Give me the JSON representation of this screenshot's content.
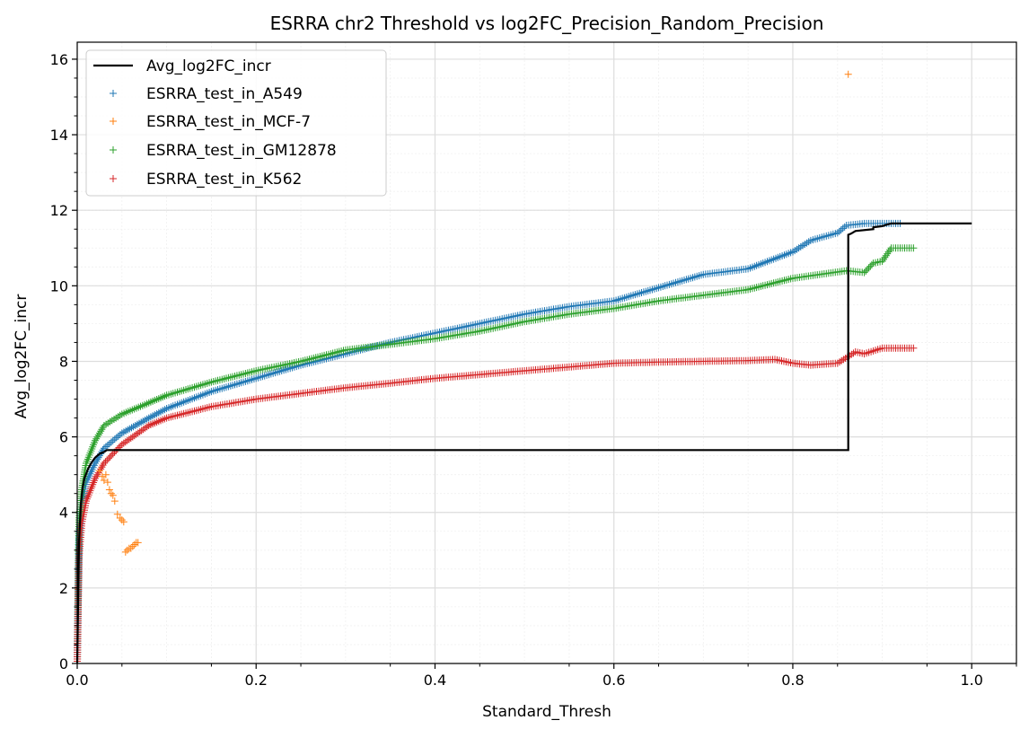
{
  "chart_data": {
    "type": "scatter",
    "title": "ESRRA chr2 Threshold vs log2FC_Precision_Random_Precision",
    "xlabel": "Standard_Thresh",
    "ylabel": "Avg_log2FC_incr",
    "xlim": [
      0,
      1.05
    ],
    "ylim": [
      0,
      16.45
    ],
    "xticks": [
      0.0,
      0.2,
      0.4,
      0.6,
      0.8,
      1.0
    ],
    "xtick_labels": [
      "0.0",
      "0.2",
      "0.4",
      "0.6",
      "0.8",
      "1.0"
    ],
    "yticks": [
      0,
      2,
      4,
      6,
      8,
      10,
      12,
      14,
      16
    ],
    "ytick_labels": [
      "0",
      "2",
      "4",
      "6",
      "8",
      "10",
      "12",
      "14",
      "16"
    ],
    "grid": true,
    "minor_grid": true,
    "legend_position": "top-left",
    "line_series": {
      "name": "Avg_log2FC_incr",
      "color": "#000000",
      "x": [
        0.0,
        0.002,
        0.004,
        0.006,
        0.008,
        0.012,
        0.016,
        0.02,
        0.025,
        0.03,
        0.033,
        0.862,
        0.862,
        0.865,
        0.87,
        0.89,
        0.89,
        0.9,
        0.905,
        0.91,
        1.0
      ],
      "y": [
        0.0,
        3.2,
        4.2,
        4.65,
        4.9,
        5.15,
        5.32,
        5.45,
        5.55,
        5.6,
        5.65,
        5.65,
        11.35,
        11.38,
        11.45,
        11.5,
        11.55,
        11.58,
        11.62,
        11.65,
        11.65
      ]
    },
    "series": [
      {
        "name": "ESRRA_test_in_A549",
        "color": "#1f77b4",
        "x": [
          0.0,
          0.002,
          0.005,
          0.01,
          0.02,
          0.03,
          0.05,
          0.08,
          0.1,
          0.15,
          0.2,
          0.25,
          0.3,
          0.35,
          0.4,
          0.45,
          0.5,
          0.55,
          0.6,
          0.65,
          0.7,
          0.75,
          0.8,
          0.82,
          0.85,
          0.86,
          0.88,
          0.9,
          0.91,
          0.92
        ],
        "y": [
          0.0,
          3.3,
          4.2,
          4.8,
          5.3,
          5.7,
          6.1,
          6.5,
          6.75,
          7.2,
          7.55,
          7.9,
          8.2,
          8.5,
          8.75,
          9.0,
          9.25,
          9.45,
          9.6,
          9.95,
          10.3,
          10.45,
          10.9,
          11.2,
          11.4,
          11.6,
          11.65,
          11.65,
          11.65,
          11.65
        ]
      },
      {
        "name": "ESRRA_test_in_MCF-7",
        "color": "#ff7f0e",
        "x": [
          0.025,
          0.028,
          0.03,
          0.032,
          0.034,
          0.036,
          0.038,
          0.04,
          0.042,
          0.045,
          0.048,
          0.05,
          0.052,
          0.054,
          0.056,
          0.058,
          0.06,
          0.062,
          0.064,
          0.066,
          0.068,
          0.862
        ],
        "y": [
          5.1,
          4.95,
          4.85,
          5.0,
          4.8,
          4.6,
          4.5,
          4.45,
          4.3,
          3.95,
          3.85,
          3.8,
          3.75,
          2.95,
          3.0,
          3.05,
          3.05,
          3.1,
          3.15,
          3.2,
          3.2,
          15.6
        ]
      },
      {
        "name": "ESRRA_test_in_GM12878",
        "color": "#2ca02c",
        "x": [
          0.0,
          0.002,
          0.005,
          0.01,
          0.02,
          0.03,
          0.05,
          0.08,
          0.1,
          0.15,
          0.2,
          0.25,
          0.3,
          0.35,
          0.4,
          0.45,
          0.5,
          0.55,
          0.6,
          0.65,
          0.7,
          0.75,
          0.8,
          0.83,
          0.86,
          0.88,
          0.89,
          0.9,
          0.91,
          0.93,
          0.935
        ],
        "y": [
          0.0,
          3.8,
          4.6,
          5.3,
          5.9,
          6.3,
          6.6,
          6.9,
          7.1,
          7.45,
          7.75,
          8.0,
          8.3,
          8.45,
          8.6,
          8.8,
          9.05,
          9.25,
          9.4,
          9.6,
          9.75,
          9.9,
          10.2,
          10.3,
          10.4,
          10.35,
          10.6,
          10.65,
          11.0,
          11.0,
          11.0
        ]
      },
      {
        "name": "ESRRA_test_in_K562",
        "color": "#d62728",
        "x": [
          0.0,
          0.002,
          0.005,
          0.01,
          0.02,
          0.03,
          0.05,
          0.08,
          0.1,
          0.15,
          0.2,
          0.25,
          0.3,
          0.35,
          0.4,
          0.45,
          0.5,
          0.55,
          0.6,
          0.65,
          0.7,
          0.75,
          0.78,
          0.8,
          0.82,
          0.85,
          0.87,
          0.88,
          0.9,
          0.93,
          0.935
        ],
        "y": [
          0.0,
          2.8,
          3.7,
          4.3,
          4.9,
          5.3,
          5.8,
          6.3,
          6.5,
          6.8,
          7.0,
          7.15,
          7.3,
          7.42,
          7.55,
          7.65,
          7.75,
          7.85,
          7.95,
          7.98,
          8.0,
          8.02,
          8.05,
          7.95,
          7.9,
          7.95,
          8.25,
          8.2,
          8.35,
          8.35,
          8.35
        ]
      }
    ]
  }
}
